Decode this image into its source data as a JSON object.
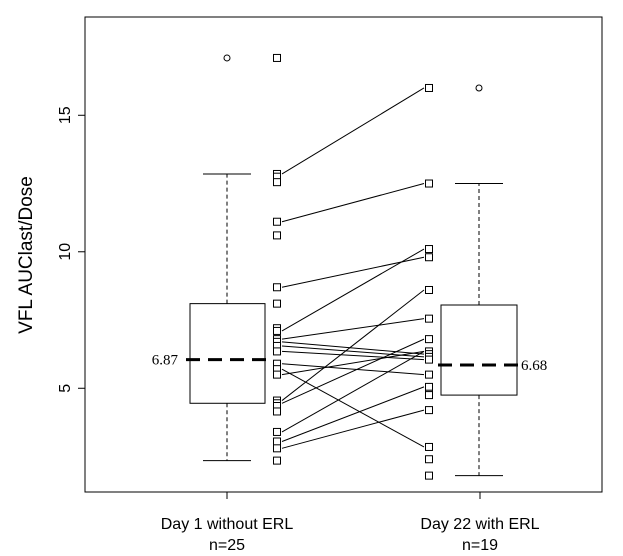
{
  "chart_data": {
    "type": "box",
    "ylabel": "VFL AUClast/Dose",
    "xlabel": "",
    "title": "",
    "ylim": [
      1.2,
      18.6
    ],
    "yticks": [
      5,
      10,
      15
    ],
    "grid": false,
    "groups": [
      {
        "label_line1": "Day 1 without ERL",
        "label_line2": "n=25",
        "min": 2.35,
        "q1": 4.45,
        "median": 6.05,
        "q3": 8.1,
        "max": 12.85,
        "mean_label": "6.87",
        "outliers": [
          17.1
        ],
        "points": [
          17.1,
          12.85,
          12.75,
          12.55,
          11.1,
          10.6,
          8.7,
          8.1,
          7.2,
          7.1,
          6.8,
          6.7,
          6.55,
          6.35,
          5.9,
          5.7,
          5.5,
          4.55,
          4.45,
          4.35,
          4.15,
          3.4,
          3.05,
          2.8,
          2.35
        ]
      },
      {
        "label_line1": "Day 22 with ERL",
        "label_line2": "n=19",
        "min": 1.8,
        "q1": 4.75,
        "median": 5.85,
        "q3": 8.05,
        "max": 12.5,
        "mean_label": "6.68",
        "outliers": [
          16.0
        ],
        "points": [
          16.0,
          12.5,
          10.1,
          9.8,
          8.6,
          7.55,
          6.8,
          6.35,
          6.25,
          6.15,
          6.05,
          5.5,
          5.05,
          4.8,
          4.75,
          4.2,
          2.85,
          2.4,
          1.8
        ]
      }
    ],
    "paired_lines": [
      [
        12.85,
        16.0
      ],
      [
        11.1,
        12.5
      ],
      [
        8.7,
        9.8
      ],
      [
        7.1,
        10.1
      ],
      [
        6.8,
        7.55
      ],
      [
        6.7,
        6.25
      ],
      [
        6.55,
        6.15
      ],
      [
        6.35,
        6.05
      ],
      [
        5.9,
        5.5
      ],
      [
        5.7,
        2.85
      ],
      [
        5.5,
        6.35
      ],
      [
        4.55,
        8.6
      ],
      [
        4.45,
        6.8
      ],
      [
        3.4,
        6.35
      ],
      [
        3.05,
        5.05
      ],
      [
        2.8,
        4.2
      ]
    ]
  }
}
